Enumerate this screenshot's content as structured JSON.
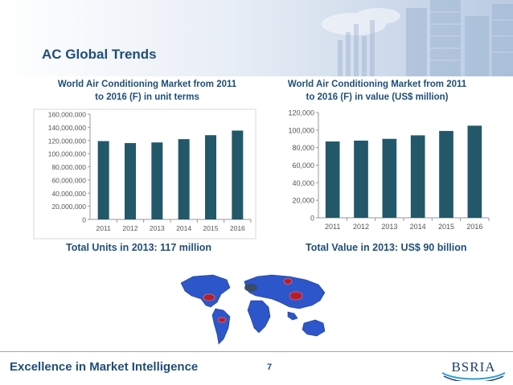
{
  "slide": {
    "title": "AC Global Trends",
    "footer": "Excellence in Market Intelligence",
    "page_number": "7",
    "logo_text": "BSRIA",
    "icons": [
      "world-map-image",
      "city-skyline-image",
      "bsria-logo"
    ]
  },
  "colors": {
    "bar": "#22586a",
    "title": "#1f4e79",
    "axis_text": "#555555",
    "map_blue": "#2c56c9",
    "map_dot": "#c0181c"
  },
  "captions": {
    "left": "Total Units in 2013: 117 million",
    "right": "Total Value in 2013: US$ 90 billion"
  },
  "chart_data": [
    {
      "type": "bar",
      "title_line1": "World Air Conditioning Market from 2011",
      "title_line2": "to 2016 (F) in unit terms",
      "categories": [
        "2011",
        "2012",
        "2013",
        "2014",
        "2015",
        "2016"
      ],
      "values": [
        119000000,
        116000000,
        117000000,
        122000000,
        128000000,
        135000000
      ],
      "ylim": [
        0,
        160000000
      ],
      "yticks": [
        0,
        20000000,
        40000000,
        60000000,
        80000000,
        100000000,
        120000000,
        140000000,
        160000000
      ],
      "ytick_labels": [
        "0",
        "20,000,000",
        "40,000,000",
        "60,000,000",
        "80,000,000",
        "100,000,000",
        "120,000,000",
        "140,000,000",
        "160,000,000"
      ],
      "grid": false,
      "xlabel": "",
      "ylabel": ""
    },
    {
      "type": "bar",
      "title_line1": "World Air Conditioning Market from 2011",
      "title_line2": "to 2016 (F) in value (US$ million)",
      "categories": [
        "2011",
        "2012",
        "2013",
        "2014",
        "2015",
        "2016"
      ],
      "values": [
        87000,
        88000,
        90000,
        94000,
        99000,
        105000
      ],
      "ylim": [
        0,
        120000
      ],
      "yticks": [
        0,
        20000,
        40000,
        60000,
        80000,
        100000,
        120000
      ],
      "ytick_labels": [
        "0",
        "20,000",
        "40,000",
        "60,000",
        "80,000",
        "100,000",
        "120,000"
      ],
      "grid": false,
      "xlabel": "",
      "ylabel": ""
    }
  ]
}
